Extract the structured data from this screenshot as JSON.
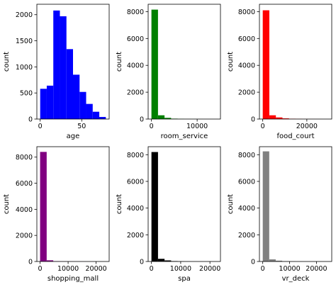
{
  "chart_data": [
    {
      "type": "bar",
      "subtype": "histogram",
      "color": "#0000ff",
      "xlabel": "age",
      "ylabel": "count",
      "xlim": [
        -4,
        83
      ],
      "ylim": [
        0,
        2200
      ],
      "xticks": [
        0,
        50
      ],
      "xtick_labels": [
        "0",
        "50"
      ],
      "yticks": [
        0,
        500,
        1000,
        1500,
        2000
      ],
      "ytick_labels": [
        "0",
        "500",
        "1000",
        "1500",
        "2000"
      ],
      "bin_edges": [
        0,
        7.9,
        15.8,
        23.7,
        31.6,
        39.5,
        47.4,
        55.3,
        63.2,
        71.1,
        79
      ],
      "values": [
        580,
        640,
        2080,
        1970,
        1340,
        850,
        520,
        290,
        140,
        40
      ]
    },
    {
      "type": "bar",
      "subtype": "histogram",
      "color": "#008000",
      "xlabel": "room_service",
      "ylabel": "count",
      "xlim": [
        -720,
        15100
      ],
      "ylim": [
        0,
        8550
      ],
      "xticks": [
        0,
        10000
      ],
      "xtick_labels": [
        "0",
        "10000"
      ],
      "yticks": [
        0,
        2000,
        4000,
        6000,
        8000
      ],
      "ytick_labels": [
        "0",
        "2000",
        "4000",
        "6000",
        "8000"
      ],
      "bin_edges": [
        0,
        1433,
        2866,
        4299,
        5732,
        7165,
        8598,
        10031,
        11464,
        12897,
        14330
      ],
      "values": [
        8150,
        280,
        90,
        30,
        12,
        6,
        3,
        2,
        1,
        1
      ]
    },
    {
      "type": "bar",
      "subtype": "histogram",
      "color": "#ff0000",
      "xlabel": "food_court",
      "ylabel": "count",
      "xlim": [
        -1500,
        31300
      ],
      "ylim": [
        0,
        8550
      ],
      "xticks": [
        0,
        20000
      ],
      "xtick_labels": [
        "0",
        "20000"
      ],
      "yticks": [
        0,
        2000,
        4000,
        6000,
        8000
      ],
      "ytick_labels": [
        "0",
        "2000",
        "4000",
        "6000",
        "8000"
      ],
      "bin_edges": [
        0,
        2981,
        5962,
        8943,
        11924,
        14905,
        17886,
        20867,
        23848,
        26829,
        29810
      ],
      "values": [
        8100,
        280,
        120,
        50,
        25,
        12,
        6,
        3,
        2,
        1
      ]
    },
    {
      "type": "bar",
      "subtype": "histogram",
      "color": "#800080",
      "xlabel": "shopping_mall",
      "ylabel": "count",
      "xlim": [
        -1150,
        24650
      ],
      "ylim": [
        0,
        8800
      ],
      "xticks": [
        0,
        10000,
        20000
      ],
      "xtick_labels": [
        "0",
        "10000",
        "20000"
      ],
      "yticks": [
        0,
        2000,
        4000,
        6000,
        8000
      ],
      "ytick_labels": [
        "0",
        "2000",
        "4000",
        "6000",
        "8000"
      ],
      "bin_edges": [
        0,
        2349,
        4698,
        7047,
        9396,
        11745,
        14094,
        16443,
        18792,
        21141,
        23490
      ],
      "values": [
        8400,
        90,
        25,
        10,
        5,
        3,
        2,
        1,
        1,
        1
      ]
    },
    {
      "type": "bar",
      "subtype": "histogram",
      "color": "#000000",
      "xlabel": "spa",
      "ylabel": "count",
      "xlim": [
        -1130,
        23600
      ],
      "ylim": [
        0,
        8600
      ],
      "xticks": [
        0,
        10000,
        20000
      ],
      "xtick_labels": [
        "0",
        "10000",
        "20000"
      ],
      "yticks": [
        0,
        2000,
        4000,
        6000,
        8000
      ],
      "ytick_labels": [
        "0",
        "2000",
        "4000",
        "6000",
        "8000"
      ],
      "bin_edges": [
        0,
        2241,
        4482,
        6723,
        8964,
        11205,
        13446,
        15687,
        17928,
        20169,
        22410
      ],
      "values": [
        8200,
        200,
        80,
        30,
        12,
        6,
        3,
        2,
        1,
        1
      ]
    },
    {
      "type": "bar",
      "subtype": "histogram",
      "color": "#808080",
      "xlabel": "vr_deck",
      "ylabel": "count",
      "xlim": [
        -1230,
        25700
      ],
      "ylim": [
        0,
        8600
      ],
      "xticks": [
        0,
        10000,
        20000
      ],
      "xtick_labels": [
        "0",
        "10000",
        "20000"
      ],
      "yticks": [
        0,
        2000,
        4000,
        6000,
        8000
      ],
      "ytick_labels": [
        "0",
        "2000",
        "4000",
        "6000",
        "8000"
      ],
      "bin_edges": [
        0,
        2413,
        4826,
        7239,
        9652,
        12065,
        14478,
        16891,
        19304,
        21717,
        24130
      ],
      "values": [
        8250,
        160,
        60,
        25,
        10,
        5,
        3,
        2,
        1,
        1
      ]
    }
  ]
}
